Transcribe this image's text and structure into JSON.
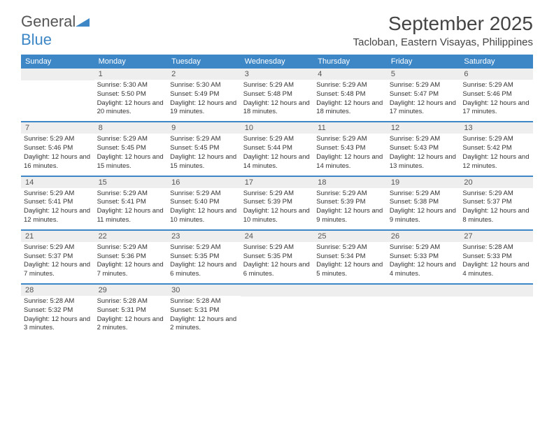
{
  "brand_general": "General",
  "brand_blue": "Blue",
  "month_title": "September 2025",
  "location": "Tacloban, Eastern Visayas, Philippines",
  "header_bg": "#3d87c7",
  "day_names": [
    "Sunday",
    "Monday",
    "Tuesday",
    "Wednesday",
    "Thursday",
    "Friday",
    "Saturday"
  ],
  "weeks": [
    [
      {
        "n": "",
        "sr": "",
        "ss": "",
        "dl": ""
      },
      {
        "n": "1",
        "sr": "Sunrise: 5:30 AM",
        "ss": "Sunset: 5:50 PM",
        "dl": "Daylight: 12 hours and 20 minutes."
      },
      {
        "n": "2",
        "sr": "Sunrise: 5:30 AM",
        "ss": "Sunset: 5:49 PM",
        "dl": "Daylight: 12 hours and 19 minutes."
      },
      {
        "n": "3",
        "sr": "Sunrise: 5:29 AM",
        "ss": "Sunset: 5:48 PM",
        "dl": "Daylight: 12 hours and 18 minutes."
      },
      {
        "n": "4",
        "sr": "Sunrise: 5:29 AM",
        "ss": "Sunset: 5:48 PM",
        "dl": "Daylight: 12 hours and 18 minutes."
      },
      {
        "n": "5",
        "sr": "Sunrise: 5:29 AM",
        "ss": "Sunset: 5:47 PM",
        "dl": "Daylight: 12 hours and 17 minutes."
      },
      {
        "n": "6",
        "sr": "Sunrise: 5:29 AM",
        "ss": "Sunset: 5:46 PM",
        "dl": "Daylight: 12 hours and 17 minutes."
      }
    ],
    [
      {
        "n": "7",
        "sr": "Sunrise: 5:29 AM",
        "ss": "Sunset: 5:46 PM",
        "dl": "Daylight: 12 hours and 16 minutes."
      },
      {
        "n": "8",
        "sr": "Sunrise: 5:29 AM",
        "ss": "Sunset: 5:45 PM",
        "dl": "Daylight: 12 hours and 15 minutes."
      },
      {
        "n": "9",
        "sr": "Sunrise: 5:29 AM",
        "ss": "Sunset: 5:45 PM",
        "dl": "Daylight: 12 hours and 15 minutes."
      },
      {
        "n": "10",
        "sr": "Sunrise: 5:29 AM",
        "ss": "Sunset: 5:44 PM",
        "dl": "Daylight: 12 hours and 14 minutes."
      },
      {
        "n": "11",
        "sr": "Sunrise: 5:29 AM",
        "ss": "Sunset: 5:43 PM",
        "dl": "Daylight: 12 hours and 14 minutes."
      },
      {
        "n": "12",
        "sr": "Sunrise: 5:29 AM",
        "ss": "Sunset: 5:43 PM",
        "dl": "Daylight: 12 hours and 13 minutes."
      },
      {
        "n": "13",
        "sr": "Sunrise: 5:29 AM",
        "ss": "Sunset: 5:42 PM",
        "dl": "Daylight: 12 hours and 12 minutes."
      }
    ],
    [
      {
        "n": "14",
        "sr": "Sunrise: 5:29 AM",
        "ss": "Sunset: 5:41 PM",
        "dl": "Daylight: 12 hours and 12 minutes."
      },
      {
        "n": "15",
        "sr": "Sunrise: 5:29 AM",
        "ss": "Sunset: 5:41 PM",
        "dl": "Daylight: 12 hours and 11 minutes."
      },
      {
        "n": "16",
        "sr": "Sunrise: 5:29 AM",
        "ss": "Sunset: 5:40 PM",
        "dl": "Daylight: 12 hours and 10 minutes."
      },
      {
        "n": "17",
        "sr": "Sunrise: 5:29 AM",
        "ss": "Sunset: 5:39 PM",
        "dl": "Daylight: 12 hours and 10 minutes."
      },
      {
        "n": "18",
        "sr": "Sunrise: 5:29 AM",
        "ss": "Sunset: 5:39 PM",
        "dl": "Daylight: 12 hours and 9 minutes."
      },
      {
        "n": "19",
        "sr": "Sunrise: 5:29 AM",
        "ss": "Sunset: 5:38 PM",
        "dl": "Daylight: 12 hours and 9 minutes."
      },
      {
        "n": "20",
        "sr": "Sunrise: 5:29 AM",
        "ss": "Sunset: 5:37 PM",
        "dl": "Daylight: 12 hours and 8 minutes."
      }
    ],
    [
      {
        "n": "21",
        "sr": "Sunrise: 5:29 AM",
        "ss": "Sunset: 5:37 PM",
        "dl": "Daylight: 12 hours and 7 minutes."
      },
      {
        "n": "22",
        "sr": "Sunrise: 5:29 AM",
        "ss": "Sunset: 5:36 PM",
        "dl": "Daylight: 12 hours and 7 minutes."
      },
      {
        "n": "23",
        "sr": "Sunrise: 5:29 AM",
        "ss": "Sunset: 5:35 PM",
        "dl": "Daylight: 12 hours and 6 minutes."
      },
      {
        "n": "24",
        "sr": "Sunrise: 5:29 AM",
        "ss": "Sunset: 5:35 PM",
        "dl": "Daylight: 12 hours and 6 minutes."
      },
      {
        "n": "25",
        "sr": "Sunrise: 5:29 AM",
        "ss": "Sunset: 5:34 PM",
        "dl": "Daylight: 12 hours and 5 minutes."
      },
      {
        "n": "26",
        "sr": "Sunrise: 5:29 AM",
        "ss": "Sunset: 5:33 PM",
        "dl": "Daylight: 12 hours and 4 minutes."
      },
      {
        "n": "27",
        "sr": "Sunrise: 5:28 AM",
        "ss": "Sunset: 5:33 PM",
        "dl": "Daylight: 12 hours and 4 minutes."
      }
    ],
    [
      {
        "n": "28",
        "sr": "Sunrise: 5:28 AM",
        "ss": "Sunset: 5:32 PM",
        "dl": "Daylight: 12 hours and 3 minutes."
      },
      {
        "n": "29",
        "sr": "Sunrise: 5:28 AM",
        "ss": "Sunset: 5:31 PM",
        "dl": "Daylight: 12 hours and 2 minutes."
      },
      {
        "n": "30",
        "sr": "Sunrise: 5:28 AM",
        "ss": "Sunset: 5:31 PM",
        "dl": "Daylight: 12 hours and 2 minutes."
      },
      {
        "n": "",
        "sr": "",
        "ss": "",
        "dl": ""
      },
      {
        "n": "",
        "sr": "",
        "ss": "",
        "dl": ""
      },
      {
        "n": "",
        "sr": "",
        "ss": "",
        "dl": ""
      },
      {
        "n": "",
        "sr": "",
        "ss": "",
        "dl": ""
      }
    ]
  ]
}
